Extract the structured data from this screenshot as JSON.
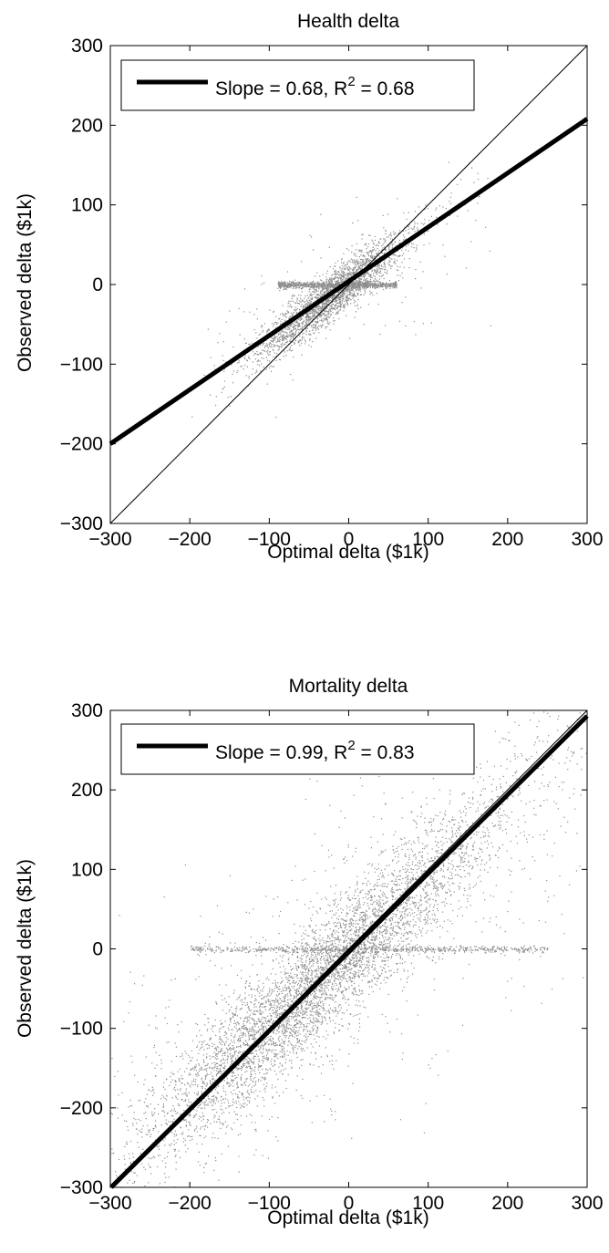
{
  "chart_data": [
    {
      "type": "scatter",
      "title": "Health delta",
      "xlabel": "Optimal delta ($1k)",
      "ylabel": "Observed delta ($1k)",
      "xlim": [
        -300,
        300
      ],
      "ylim": [
        -300,
        300
      ],
      "xticks": [
        -300,
        -200,
        -100,
        0,
        100,
        200,
        300
      ],
      "yticks": [
        -300,
        -200,
        -100,
        0,
        100,
        200,
        300
      ],
      "xtick_labels": [
        "−300",
        "−200",
        "−100",
        "0",
        "100",
        "200",
        "300"
      ],
      "ytick_labels": [
        "−300",
        "−200",
        "−100",
        "0",
        "100",
        "200",
        "300"
      ],
      "grid": false,
      "legend": {
        "position": "top-left",
        "text_prefix": "Slope = 0.68, R",
        "text_sup": "2",
        "text_suffix": " = 0.68"
      },
      "fit": {
        "slope": 0.68,
        "intercept": 4,
        "r2": 0.68
      },
      "identity_line": true,
      "cloud": {
        "diag_spread": {
          "center": -20,
          "sd_along": 45,
          "sd_perp": 12,
          "n": 2600
        },
        "horizontal_band": {
          "x_range": [
            -90,
            60
          ],
          "y": 0,
          "n": 900
        },
        "outliers": {
          "n": 180
        }
      },
      "colors": {
        "points": "#8c8c8c",
        "lines": "#000000"
      }
    },
    {
      "type": "scatter",
      "title": "Mortality delta",
      "xlabel": "Optimal delta ($1k)",
      "ylabel": "Observed delta ($1k)",
      "xlim": [
        -300,
        300
      ],
      "ylim": [
        -300,
        300
      ],
      "xticks": [
        -300,
        -200,
        -100,
        0,
        100,
        200,
        300
      ],
      "yticks": [
        -300,
        -200,
        -100,
        0,
        100,
        200,
        300
      ],
      "xtick_labels": [
        "−300",
        "−200",
        "−100",
        "0",
        "100",
        "200",
        "300"
      ],
      "ytick_labels": [
        "−300",
        "−200",
        "−100",
        "0",
        "100",
        "200",
        "300"
      ],
      "grid": false,
      "legend": {
        "position": "top-left",
        "text_prefix": "Slope = 0.99, R",
        "text_sup": "2",
        "text_suffix": " = 0.83"
      },
      "fit": {
        "slope": 0.99,
        "intercept": -4,
        "r2": 0.83
      },
      "identity_line": true,
      "cloud": {
        "diag_spread": {
          "center": -40,
          "sd_along": 110,
          "sd_perp": 28,
          "n": 5200
        },
        "horizontal_band": {
          "x_range": [
            -200,
            250
          ],
          "y": 0,
          "n": 700
        },
        "outliers": {
          "n": 900
        }
      },
      "colors": {
        "points": "#8c8c8c",
        "lines": "#000000"
      }
    }
  ]
}
